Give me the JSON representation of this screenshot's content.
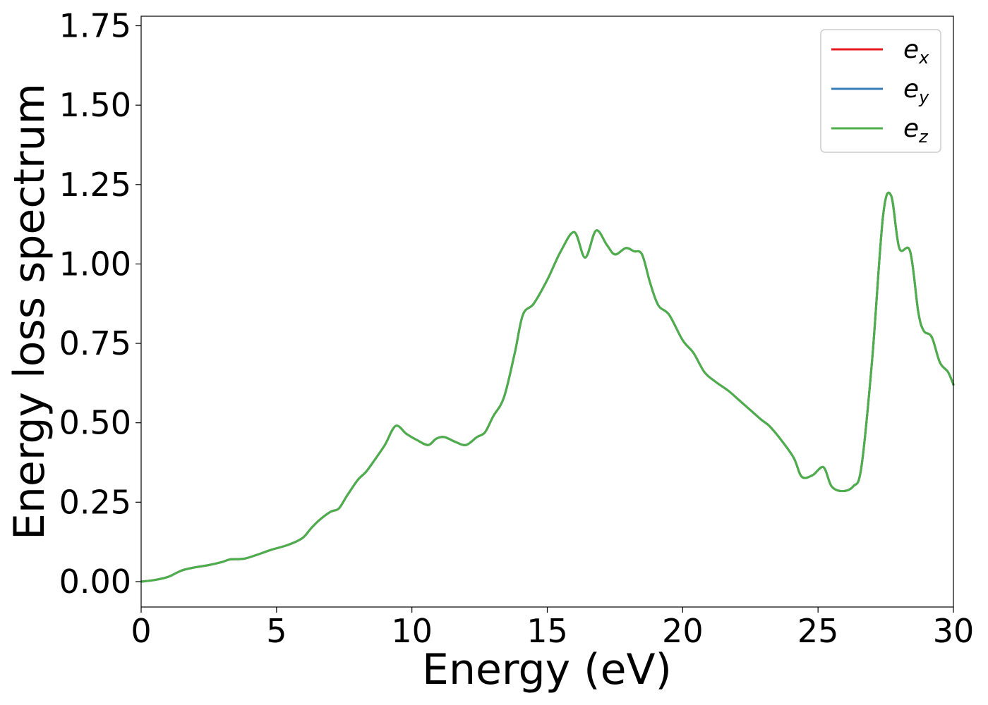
{
  "chart_data": {
    "type": "line",
    "title": "",
    "xlabel": "Energy (eV)",
    "ylabel": "Energy loss spectrum",
    "xlim": [
      0,
      30
    ],
    "ylim": [
      -0.08,
      1.78
    ],
    "xticks": [
      0,
      5,
      10,
      15,
      20,
      25,
      30
    ],
    "xtick_labels": [
      "0",
      "5",
      "10",
      "15",
      "20",
      "25",
      "30"
    ],
    "yticks": [
      0,
      0.25,
      0.5,
      0.75,
      1.0,
      1.25,
      1.5,
      1.75
    ],
    "ytick_labels": [
      "0.00",
      "0.25",
      "0.50",
      "0.75",
      "1.00",
      "1.25",
      "1.50",
      "1.75"
    ],
    "grid": false,
    "legend": "top-right",
    "x": [
      0,
      0.5,
      1.0,
      1.5,
      2.0,
      2.5,
      3.0,
      3.3,
      3.8,
      4.3,
      4.8,
      5.3,
      5.7,
      6.0,
      6.3,
      6.6,
      7.0,
      7.3,
      7.6,
      8.0,
      8.3,
      8.6,
      9.0,
      9.4,
      9.8,
      10.2,
      10.6,
      10.9,
      11.2,
      11.6,
      12.0,
      12.4,
      12.7,
      13.0,
      13.4,
      13.8,
      14.1,
      14.5,
      15.0,
      15.5,
      16.0,
      16.4,
      16.8,
      17.2,
      17.5,
      17.9,
      18.2,
      18.5,
      18.8,
      19.1,
      19.5,
      20.0,
      20.4,
      20.8,
      21.2,
      21.7,
      22.1,
      22.5,
      22.9,
      23.2,
      23.6,
      24.1,
      24.4,
      24.8,
      25.2,
      25.5,
      25.9,
      26.3,
      26.6,
      27.0,
      27.4,
      27.7,
      28.0,
      28.4,
      28.7,
      28.9,
      29.2,
      29.5,
      29.8,
      30.0
    ],
    "series": [
      {
        "name": "e_x",
        "label_main": "e",
        "label_sub": "x",
        "color": "#e41a1c",
        "y": [
          0.0,
          0.005,
          0.015,
          0.035,
          0.045,
          0.052,
          0.062,
          0.07,
          0.072,
          0.085,
          0.1,
          0.112,
          0.125,
          0.14,
          0.17,
          0.195,
          0.22,
          0.23,
          0.27,
          0.32,
          0.345,
          0.38,
          0.43,
          0.49,
          0.465,
          0.445,
          0.43,
          0.45,
          0.455,
          0.44,
          0.43,
          0.455,
          0.47,
          0.52,
          0.58,
          0.72,
          0.84,
          0.875,
          0.95,
          1.04,
          1.1,
          1.02,
          1.105,
          1.06,
          1.03,
          1.05,
          1.04,
          1.03,
          0.94,
          0.87,
          0.84,
          0.76,
          0.72,
          0.66,
          0.63,
          0.6,
          0.57,
          0.54,
          0.51,
          0.49,
          0.45,
          0.39,
          0.33,
          0.335,
          0.36,
          0.3,
          0.285,
          0.3,
          0.36,
          0.7,
          1.15,
          1.215,
          1.05,
          1.04,
          0.85,
          0.79,
          0.77,
          0.69,
          0.66,
          0.62
        ]
      },
      {
        "name": "e_y",
        "label_main": "e",
        "label_sub": "y",
        "color": "#377eb8",
        "y": [
          0.0,
          0.005,
          0.015,
          0.035,
          0.045,
          0.052,
          0.062,
          0.07,
          0.072,
          0.085,
          0.1,
          0.112,
          0.125,
          0.14,
          0.17,
          0.195,
          0.22,
          0.23,
          0.27,
          0.32,
          0.345,
          0.38,
          0.43,
          0.49,
          0.465,
          0.445,
          0.43,
          0.45,
          0.455,
          0.44,
          0.43,
          0.455,
          0.47,
          0.52,
          0.58,
          0.72,
          0.84,
          0.875,
          0.95,
          1.04,
          1.1,
          1.02,
          1.105,
          1.06,
          1.03,
          1.05,
          1.04,
          1.03,
          0.94,
          0.87,
          0.84,
          0.76,
          0.72,
          0.66,
          0.63,
          0.6,
          0.57,
          0.54,
          0.51,
          0.49,
          0.45,
          0.39,
          0.33,
          0.335,
          0.36,
          0.3,
          0.285,
          0.3,
          0.36,
          0.7,
          1.15,
          1.215,
          1.05,
          1.04,
          0.85,
          0.79,
          0.77,
          0.69,
          0.66,
          0.62
        ]
      },
      {
        "name": "e_z",
        "label_main": "e",
        "label_sub": "z",
        "color": "#4daf4a",
        "y": [
          0.0,
          0.005,
          0.015,
          0.035,
          0.045,
          0.052,
          0.062,
          0.07,
          0.072,
          0.085,
          0.1,
          0.112,
          0.125,
          0.14,
          0.17,
          0.195,
          0.22,
          0.23,
          0.27,
          0.32,
          0.345,
          0.38,
          0.43,
          0.49,
          0.465,
          0.445,
          0.43,
          0.45,
          0.455,
          0.44,
          0.43,
          0.455,
          0.47,
          0.52,
          0.58,
          0.72,
          0.84,
          0.875,
          0.95,
          1.04,
          1.1,
          1.02,
          1.105,
          1.06,
          1.03,
          1.05,
          1.04,
          1.03,
          0.94,
          0.87,
          0.84,
          0.76,
          0.72,
          0.66,
          0.63,
          0.6,
          0.57,
          0.54,
          0.51,
          0.49,
          0.45,
          0.39,
          0.33,
          0.335,
          0.36,
          0.3,
          0.285,
          0.3,
          0.36,
          0.7,
          1.15,
          1.215,
          1.05,
          1.04,
          0.85,
          0.79,
          0.77,
          0.69,
          0.66,
          0.62
        ]
      }
    ]
  }
}
